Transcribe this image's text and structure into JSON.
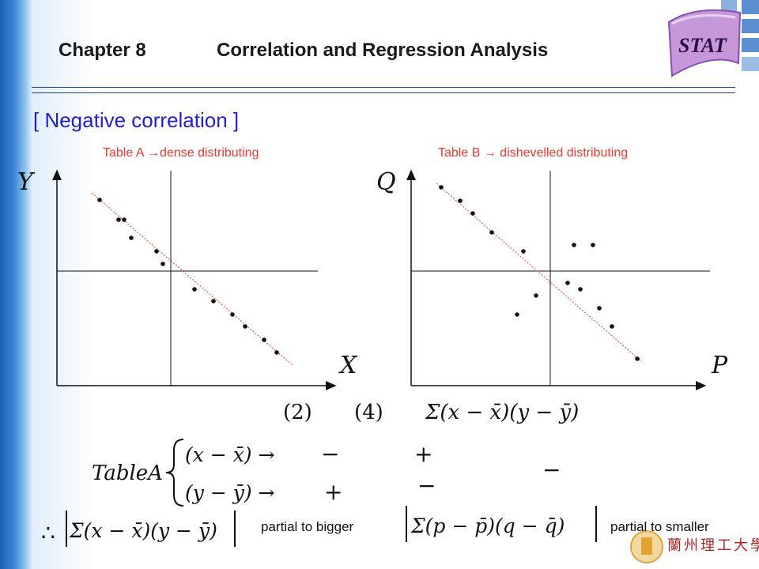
{
  "header": {
    "chapter": "Chapter 8",
    "title": "Correlation and Regression Analysis",
    "logo_text": "STAT"
  },
  "section_heading": "[ Negative correlation ]",
  "captions": {
    "table_a": "Table A →dense distributing",
    "table_b": "Table B → dishevelled distributing"
  },
  "plot_a": {
    "y_label": "Y",
    "x_label": "X",
    "points": [
      [
        126,
        253
      ],
      [
        150,
        278
      ],
      [
        157,
        278
      ],
      [
        166,
        301
      ],
      [
        198,
        318
      ],
      [
        206,
        334
      ],
      [
        246,
        366
      ],
      [
        270,
        381
      ],
      [
        294,
        398
      ],
      [
        310,
        413
      ],
      [
        334,
        430
      ],
      [
        350,
        446
      ]
    ]
  },
  "plot_b": {
    "y_label": "Q",
    "x_label": "P",
    "points": [
      [
        558,
        237
      ],
      [
        582,
        254
      ],
      [
        598,
        270
      ],
      [
        622,
        294
      ],
      [
        662,
        318
      ],
      [
        726,
        310
      ],
      [
        750,
        310
      ],
      [
        678,
        374
      ],
      [
        654,
        398
      ],
      [
        718,
        358
      ],
      [
        734,
        366
      ],
      [
        758,
        390
      ],
      [
        774,
        413
      ],
      [
        806,
        454
      ]
    ]
  },
  "quadrant_labels": [
    "(2)",
    "(4)"
  ],
  "formulas": {
    "sum_top": "Σ(x − x̄)(y − ȳ)",
    "table_a_label": "TableA",
    "row1_expr": "(x − x̄) →",
    "row2_expr": "(y − ȳ) →",
    "row1_signs": [
      "−",
      "+"
    ],
    "row2_signs": [
      "+",
      "−"
    ],
    "result_sign": "−",
    "therefore": "∴",
    "abs_a": "Σ(x − x̄)(y − ȳ)",
    "abs_b": "Σ(p − p̄)(q − q̄)"
  },
  "notes": {
    "bigger": "partial to bigger",
    "smaller": "partial to smaller"
  },
  "colors": {
    "accent_blue": "#1f1fd6",
    "caption_red": "#e83a2e",
    "trend_line": "#e83a2e",
    "logo_purple": "#b07ac8"
  }
}
